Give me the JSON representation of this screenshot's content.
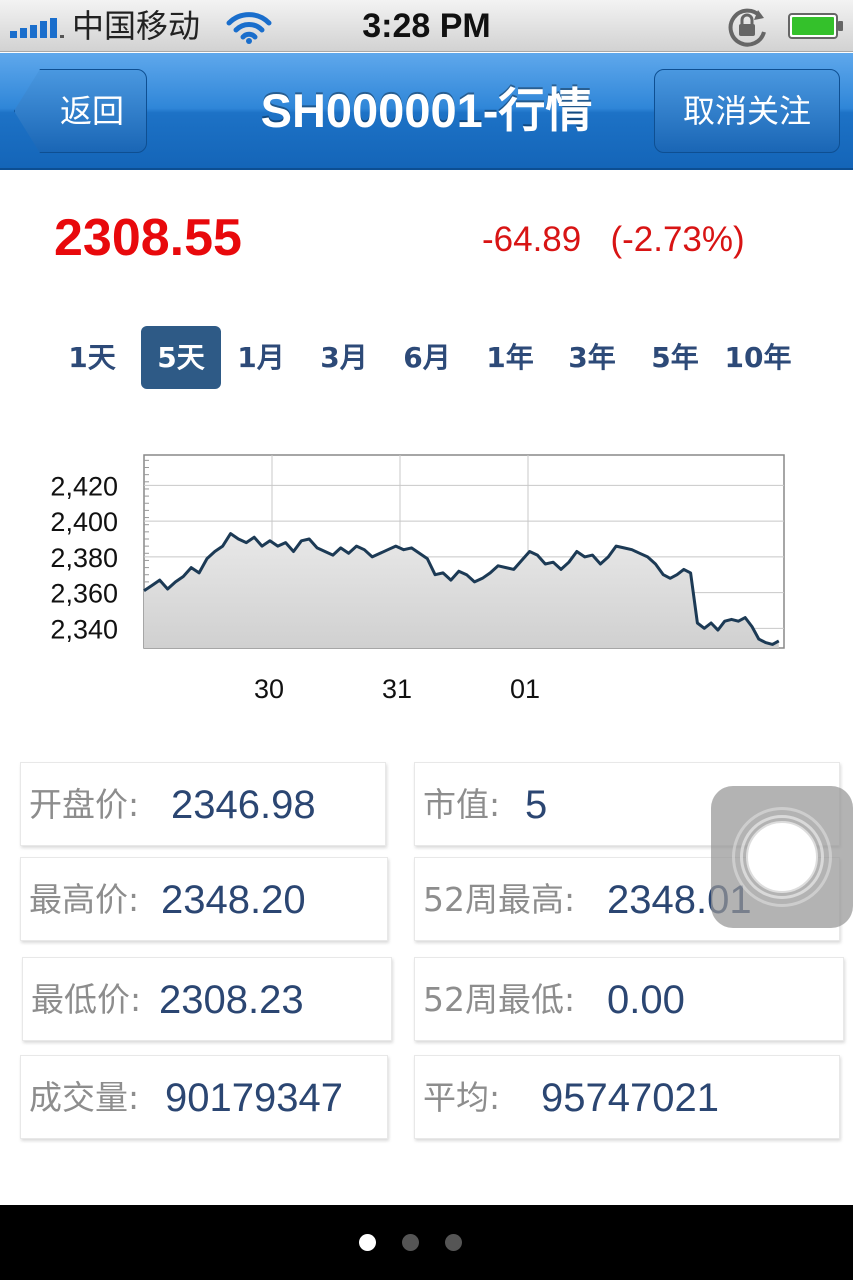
{
  "status_bar": {
    "carrier": "中国移动",
    "time": "3:28 PM",
    "signal_icon": "signal-bars-icon",
    "wifi_icon": "wifi-icon",
    "lock_icon": "rotation-lock-icon",
    "battery_icon": "battery-icon"
  },
  "nav": {
    "back_label": "返回",
    "title": "SH000001-行情",
    "unfollow_label": "取消关注"
  },
  "quote": {
    "price": "2308.55",
    "change": "-64.89",
    "change_pct": "(-2.73%)",
    "color_up_down": "#e8090c"
  },
  "ranges": {
    "selected": "5天",
    "items": [
      "1天",
      "5天",
      "1月",
      "3月",
      "6月",
      "1年",
      "3年",
      "5年",
      "10年"
    ]
  },
  "chart_data": {
    "type": "area",
    "title": "",
    "xlabel": "",
    "ylabel": "",
    "x_tick_labels": [
      "30",
      "31",
      "01"
    ],
    "y_tick_labels": [
      "2,420",
      "2,400",
      "2,380",
      "2,360",
      "2,340"
    ],
    "y_ticks": [
      2420,
      2400,
      2380,
      2360,
      2340
    ],
    "ylim": [
      2329,
      2437
    ],
    "x_range": [
      0,
      100
    ],
    "x_tick_positions": [
      20,
      40,
      60
    ],
    "grid": true,
    "series": [
      {
        "values": [
          [
            0,
            2361
          ],
          [
            1.5,
            2364
          ],
          [
            3,
            2367
          ],
          [
            4.5,
            2362
          ],
          [
            6,
            2366
          ],
          [
            7.5,
            2369
          ],
          [
            9,
            2374
          ],
          [
            10.5,
            2371
          ],
          [
            12,
            2379
          ],
          [
            13.5,
            2383
          ],
          [
            15,
            2386
          ],
          [
            16.5,
            2393
          ],
          [
            18,
            2390
          ],
          [
            19.5,
            2388
          ],
          [
            21,
            2391
          ],
          [
            22.5,
            2386
          ],
          [
            24,
            2389
          ],
          [
            25.5,
            2386
          ],
          [
            27,
            2388
          ],
          [
            28.5,
            2383
          ],
          [
            30,
            2389
          ],
          [
            31.5,
            2390
          ],
          [
            33,
            2385
          ],
          [
            34.5,
            2383
          ],
          [
            36,
            2381
          ],
          [
            37.5,
            2385
          ],
          [
            39,
            2382
          ],
          [
            40.5,
            2386
          ],
          [
            42,
            2384
          ],
          [
            43.5,
            2380
          ],
          [
            45,
            2382
          ],
          [
            46.5,
            2384
          ],
          [
            48,
            2386
          ],
          [
            49.5,
            2384
          ],
          [
            51,
            2385
          ],
          [
            52.5,
            2382
          ],
          [
            54,
            2379
          ],
          [
            55.5,
            2370
          ],
          [
            57,
            2371
          ],
          [
            58.5,
            2367
          ],
          [
            60,
            2372
          ],
          [
            61.5,
            2370
          ],
          [
            63,
            2366
          ],
          [
            64.5,
            2368
          ],
          [
            66,
            2371
          ],
          [
            67.5,
            2375
          ],
          [
            69,
            2374
          ],
          [
            70.5,
            2373
          ],
          [
            72,
            2378
          ],
          [
            73.5,
            2383
          ],
          [
            75,
            2381
          ],
          [
            76.5,
            2376
          ],
          [
            78,
            2377
          ],
          [
            79.5,
            2373
          ],
          [
            81,
            2377
          ],
          [
            82.5,
            2383
          ],
          [
            84,
            2380
          ],
          [
            85.5,
            2381
          ],
          [
            87,
            2376
          ],
          [
            88.5,
            2380
          ],
          [
            90,
            2386
          ],
          [
            91.5,
            2385
          ],
          [
            93,
            2384
          ],
          [
            94.5,
            2382
          ],
          [
            96,
            2380
          ],
          [
            97.5,
            2376
          ],
          [
            99,
            2370
          ]
        ]
      }
    ],
    "series_tail": [
      [
        0,
        2370
      ],
      [
        1.3,
        2368
      ],
      [
        2.6,
        2370
      ],
      [
        3.9,
        2373
      ],
      [
        5.2,
        2371
      ],
      [
        6.5,
        2343
      ],
      [
        7.8,
        2340
      ],
      [
        9.1,
        2343
      ],
      [
        10.4,
        2339
      ],
      [
        11.7,
        2344
      ],
      [
        13,
        2345
      ],
      [
        14.3,
        2344
      ],
      [
        15.6,
        2346
      ],
      [
        16.9,
        2341
      ],
      [
        18.2,
        2334
      ],
      [
        19.5,
        2332
      ],
      [
        20.8,
        2331
      ],
      [
        22,
        2333
      ]
    ],
    "tail_offset_x": 0,
    "line_color": "#1c3a55",
    "fill_color": "#dedede"
  },
  "stats": [
    {
      "label": "开盘价:",
      "value": "2346.98"
    },
    {
      "label": "市值:",
      "value": "5"
    },
    {
      "label": "最高价:",
      "value": "2348.20"
    },
    {
      "label": "52周最高:",
      "value": "2348.01"
    },
    {
      "label": "最低价:",
      "value": "2308.23"
    },
    {
      "label": "52周最低:",
      "value": "0.00"
    },
    {
      "label": "成交量:",
      "value": "90179347"
    },
    {
      "label": "平均:",
      "value": "95747021"
    }
  ],
  "pager": {
    "count": 3,
    "active": 0
  },
  "assistive_icon": "assistive-touch-icon"
}
